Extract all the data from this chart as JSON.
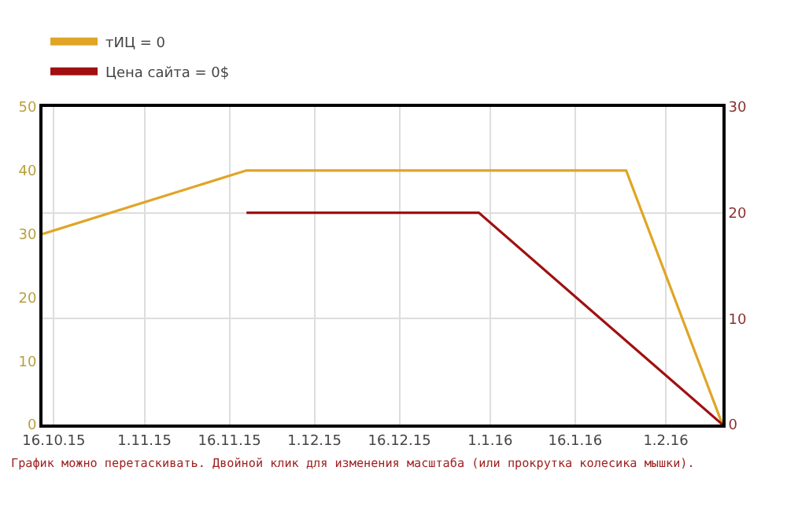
{
  "chart_data": {
    "type": "line",
    "legend": "top left",
    "grid": true,
    "marker": "none",
    "line_style": "solid",
    "series": [
      {
        "name": "тИЦ = 0",
        "color": "#e0a526",
        "x": [
          "2015-10-14",
          "2015-11-19",
          "2016-01-25",
          "2016-02-11"
        ],
        "values": [
          30,
          40,
          40,
          0
        ]
      },
      {
        "name": "Цена сайта = 0$",
        "color": "#a01010",
        "axis": "y2",
        "x": [
          "2015-11-19",
          "2015-12-30",
          "2016-02-11"
        ],
        "values": [
          20,
          20,
          0
        ]
      }
    ],
    "xlim": [
      "2015-10-14",
      "2016-02-11"
    ],
    "xticks": [
      {
        "value": "2015-10-16",
        "label": "16.10.15"
      },
      {
        "value": "2015-11-01",
        "label": "1.11.15"
      },
      {
        "value": "2015-11-16",
        "label": "16.11.15"
      },
      {
        "value": "2015-12-01",
        "label": "1.12.15"
      },
      {
        "value": "2015-12-16",
        "label": "16.12.15"
      },
      {
        "value": "2016-01-01",
        "label": "1.1.16"
      },
      {
        "value": "2016-01-16",
        "label": "16.1.16"
      },
      {
        "value": "2016-02-01",
        "label": "1.2.16"
      }
    ],
    "ylim": [
      0,
      50
    ],
    "yticks": [
      0,
      10,
      20,
      30,
      40,
      50
    ],
    "y2lim": [
      0,
      30
    ],
    "y2ticks": [
      0,
      10,
      20,
      30
    ],
    "annotations": [
      "График можно перетаскивать. Двойной клик для изменения масштаба (или прокрутка колесика мышки)."
    ]
  }
}
